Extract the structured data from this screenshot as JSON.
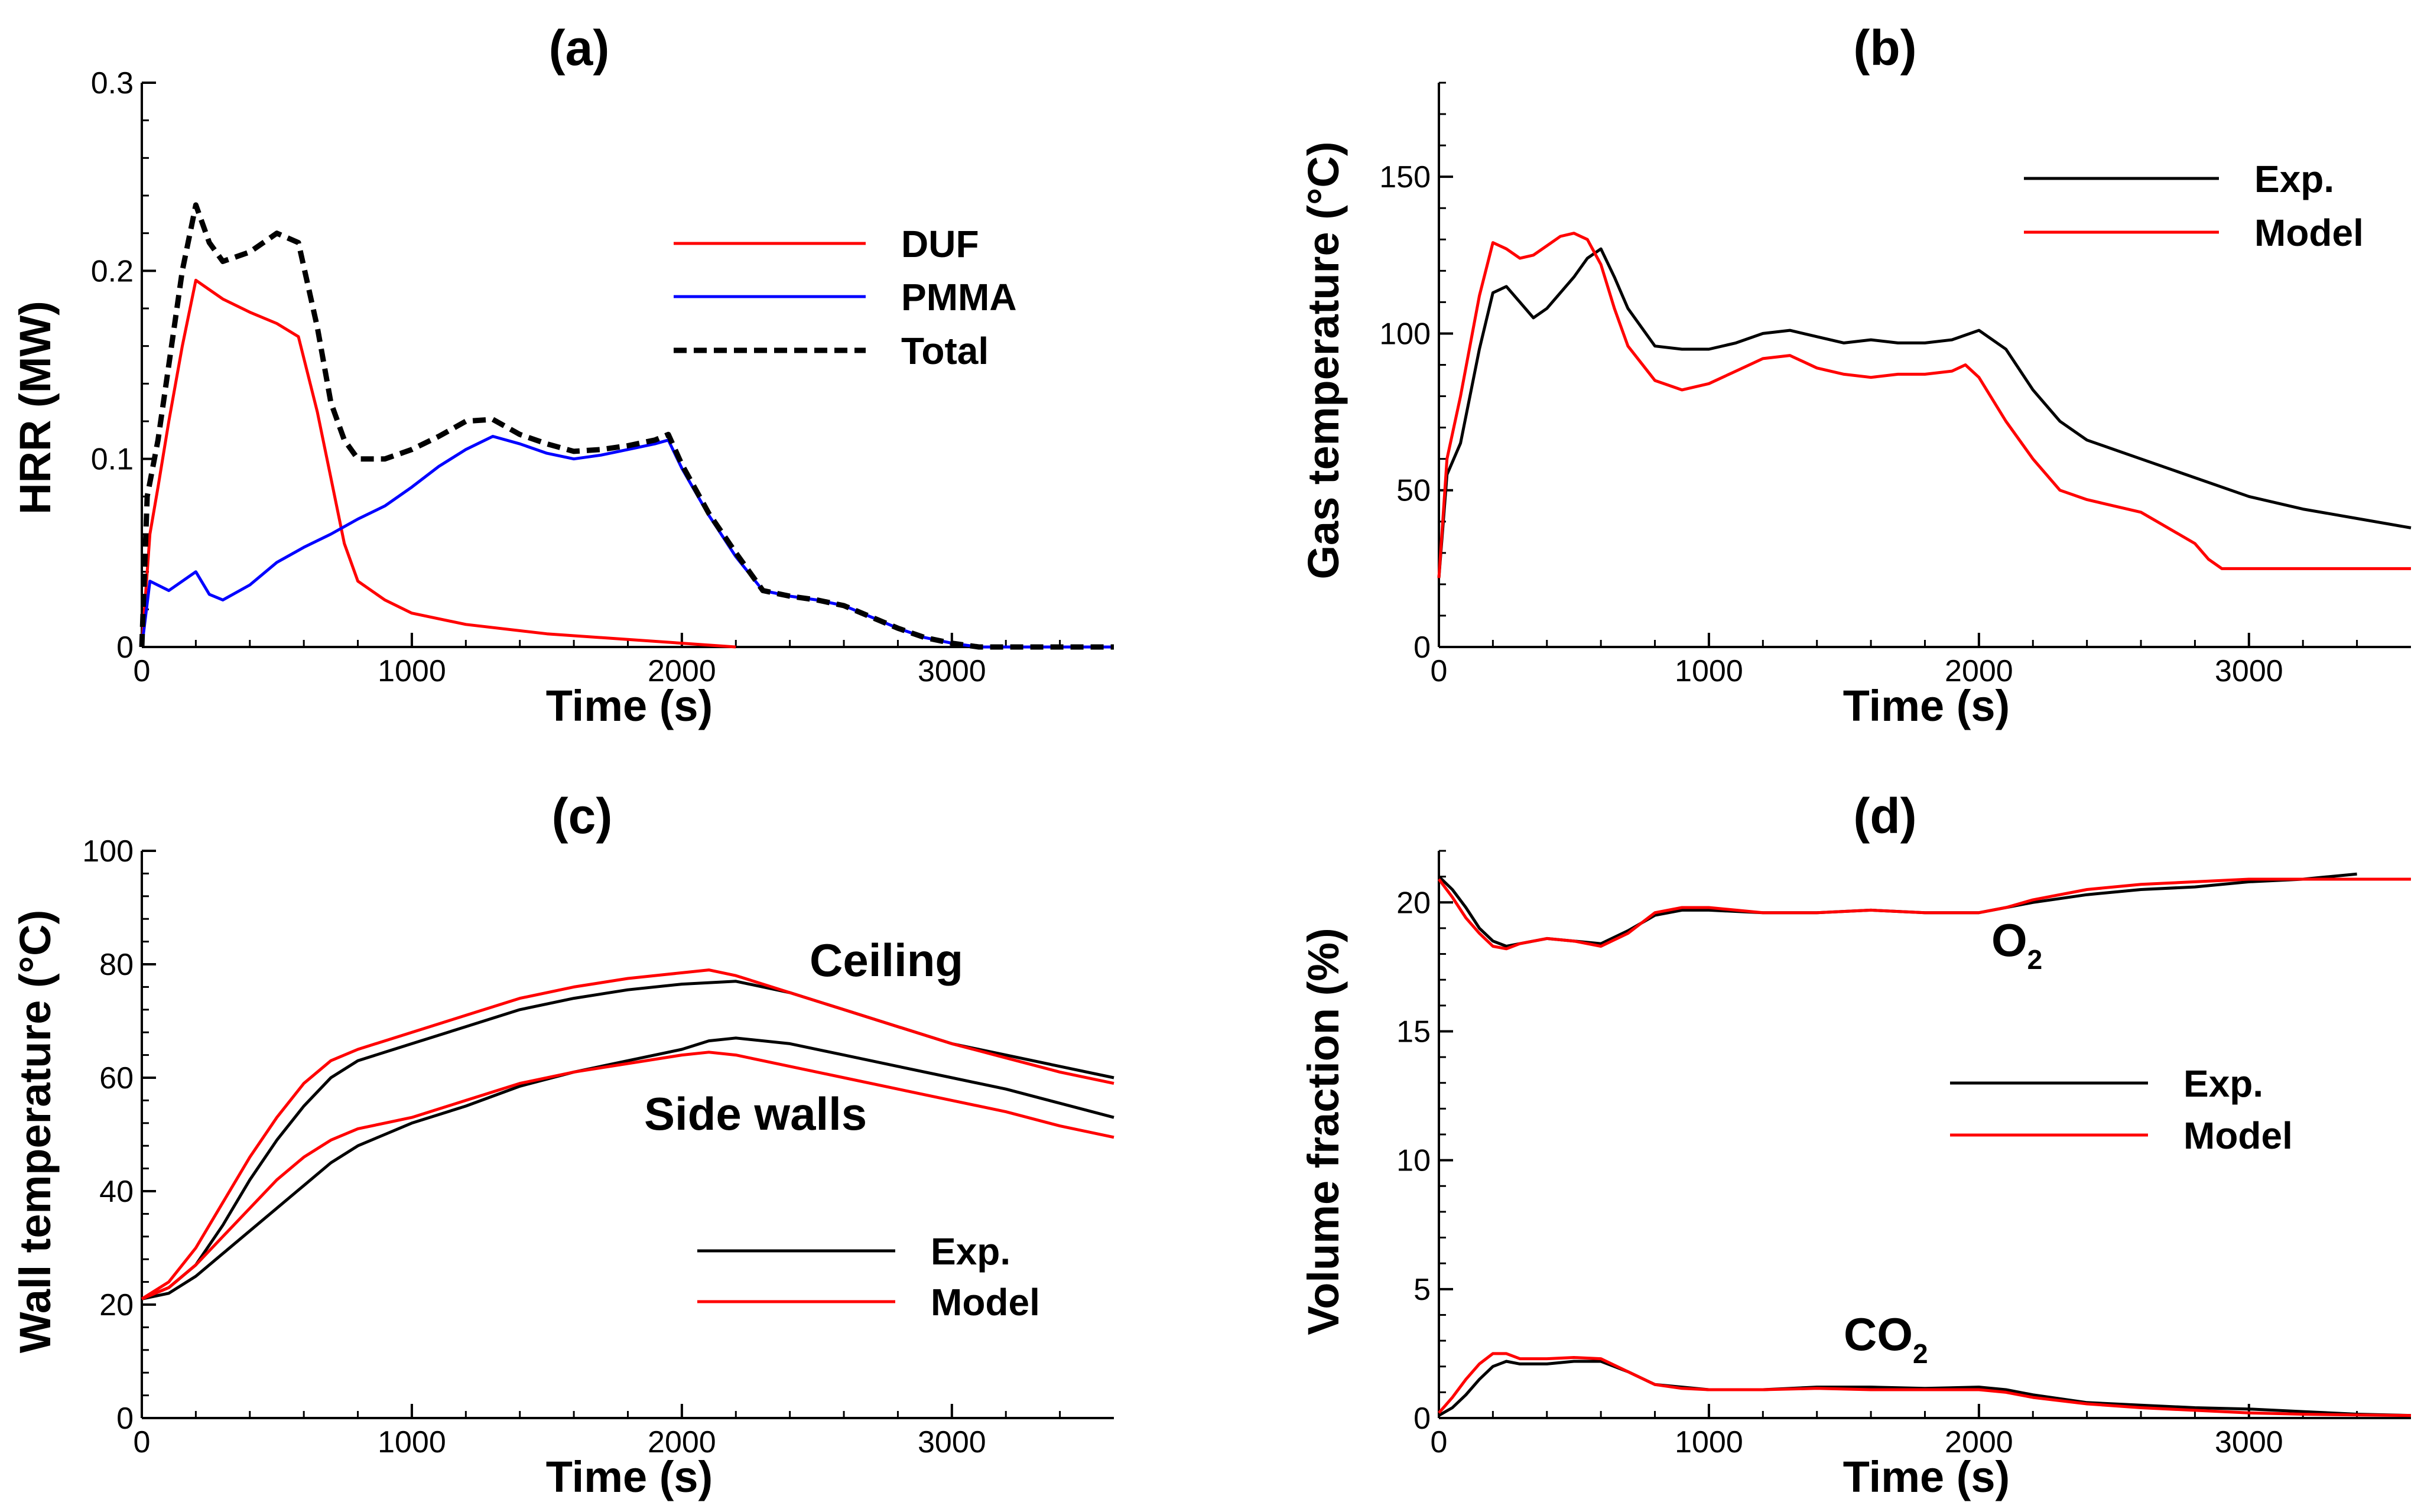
{
  "chart_data": [
    {
      "panel": "a",
      "type": "line",
      "title": "(a)",
      "xlabel": "Time (s)",
      "ylabel": "HRR (MW)",
      "xlim": [
        0,
        3600
      ],
      "ylim": [
        0,
        0.3
      ],
      "xticks": [
        0,
        1000,
        2000,
        3000
      ],
      "yticks": [
        0,
        0.1,
        0.2,
        0.3
      ],
      "xtick_labels": [
        "0",
        "1000",
        "2000",
        "3000"
      ],
      "ytick_labels": [
        "0",
        "0.1",
        "0.2",
        "0.3"
      ],
      "legend": "top-right",
      "series": [
        {
          "name": "DUF",
          "color": "#ff0000",
          "dash": "solid",
          "x": [
            0,
            30,
            60,
            100,
            150,
            200,
            250,
            300,
            400,
            500,
            580,
            650,
            700,
            750,
            800,
            900,
            1000,
            1200,
            1500,
            1800,
            2000,
            2200
          ],
          "y": [
            0,
            0.06,
            0.085,
            0.12,
            0.16,
            0.195,
            0.19,
            0.185,
            0.178,
            0.172,
            0.165,
            0.125,
            0.09,
            0.055,
            0.035,
            0.025,
            0.018,
            0.012,
            0.007,
            0.004,
            0.002,
            0.0
          ]
        },
        {
          "name": "PMMA",
          "color": "#0000ff",
          "dash": "solid",
          "x": [
            0,
            30,
            100,
            200,
            250,
            300,
            400,
            500,
            600,
            700,
            800,
            900,
            1000,
            1100,
            1200,
            1300,
            1400,
            1500,
            1600,
            1700,
            1800,
            1900,
            1950,
            2000,
            2100,
            2200,
            2300,
            2400,
            2500,
            2600,
            2700,
            2800,
            2900,
            3000,
            3100,
            3600
          ],
          "y": [
            0,
            0.035,
            0.03,
            0.04,
            0.028,
            0.025,
            0.033,
            0.045,
            0.053,
            0.06,
            0.068,
            0.075,
            0.085,
            0.096,
            0.105,
            0.112,
            0.108,
            0.103,
            0.1,
            0.102,
            0.105,
            0.108,
            0.11,
            0.095,
            0.07,
            0.048,
            0.03,
            0.027,
            0.025,
            0.022,
            0.016,
            0.01,
            0.005,
            0.002,
            0.0,
            0.0
          ]
        },
        {
          "name": "Total",
          "color": "#000000",
          "dash": "dashed",
          "x": [
            0,
            20,
            60,
            100,
            150,
            200,
            250,
            300,
            400,
            500,
            580,
            650,
            700,
            750,
            800,
            900,
            1000,
            1100,
            1200,
            1300,
            1400,
            1500,
            1600,
            1700,
            1800,
            1900,
            1950,
            2000,
            2100,
            2200,
            2300,
            2400,
            2500,
            2600,
            2700,
            2800,
            2900,
            3000,
            3100,
            3600
          ],
          "y": [
            0,
            0.08,
            0.11,
            0.15,
            0.2,
            0.235,
            0.215,
            0.205,
            0.21,
            0.22,
            0.215,
            0.17,
            0.13,
            0.11,
            0.1,
            0.1,
            0.105,
            0.112,
            0.12,
            0.121,
            0.113,
            0.108,
            0.104,
            0.105,
            0.107,
            0.11,
            0.113,
            0.097,
            0.071,
            0.05,
            0.03,
            0.027,
            0.025,
            0.022,
            0.016,
            0.01,
            0.005,
            0.002,
            0.0,
            0.0
          ]
        }
      ]
    },
    {
      "panel": "b",
      "type": "line",
      "title": "(b)",
      "xlabel": "Time (s)",
      "ylabel": "Gas temperature (°C)",
      "xlim": [
        0,
        3600
      ],
      "ylim": [
        0,
        180
      ],
      "xticks": [
        0,
        1000,
        2000,
        3000
      ],
      "yticks": [
        0,
        50,
        100,
        150
      ],
      "xtick_labels": [
        "0",
        "1000",
        "2000",
        "3000"
      ],
      "ytick_labels": [
        "0",
        "50",
        "100",
        "150"
      ],
      "legend": "top-right",
      "series": [
        {
          "name": "Exp.",
          "color": "#000000",
          "dash": "solid",
          "x": [
            0,
            30,
            80,
            150,
            200,
            250,
            300,
            350,
            400,
            450,
            500,
            550,
            600,
            650,
            700,
            800,
            900,
            1000,
            1100,
            1200,
            1300,
            1400,
            1500,
            1600,
            1700,
            1800,
            1900,
            2000,
            2100,
            2200,
            2300,
            2400,
            2600,
            2800,
            3000,
            3200,
            3400,
            3600
          ],
          "y": [
            22,
            55,
            65,
            95,
            113,
            115,
            110,
            105,
            108,
            113,
            118,
            124,
            127,
            118,
            108,
            96,
            95,
            95,
            97,
            100,
            101,
            99,
            97,
            98,
            97,
            97,
            98,
            101,
            95,
            82,
            72,
            66,
            60,
            54,
            48,
            44,
            41,
            38
          ]
        },
        {
          "name": "Model",
          "color": "#ff0000",
          "dash": "solid",
          "x": [
            0,
            30,
            80,
            150,
            200,
            250,
            300,
            350,
            400,
            450,
            500,
            550,
            600,
            650,
            700,
            800,
            900,
            1000,
            1100,
            1200,
            1300,
            1400,
            1500,
            1600,
            1700,
            1800,
            1900,
            1950,
            2000,
            2100,
            2200,
            2300,
            2400,
            2600,
            2700,
            2800,
            2850,
            2900,
            3000,
            3600
          ],
          "y": [
            22,
            60,
            80,
            112,
            129,
            127,
            124,
            125,
            128,
            131,
            132,
            130,
            122,
            108,
            96,
            85,
            82,
            84,
            88,
            92,
            93,
            89,
            87,
            86,
            87,
            87,
            88,
            90,
            86,
            72,
            60,
            50,
            47,
            43,
            38,
            33,
            28,
            25,
            25,
            25
          ]
        }
      ]
    },
    {
      "panel": "c",
      "type": "line",
      "title": "(c)",
      "xlabel": "Time (s)",
      "ylabel": "Wall temperature (°C)",
      "xlim": [
        0,
        3600
      ],
      "ylim": [
        0,
        100
      ],
      "xticks": [
        0,
        1000,
        2000,
        3000
      ],
      "yticks": [
        0,
        20,
        40,
        60,
        80,
        100
      ],
      "xtick_labels": [
        "0",
        "1000",
        "2000",
        "3000"
      ],
      "ytick_labels": [
        "0",
        "20",
        "40",
        "60",
        "80",
        "100"
      ],
      "legend": "bottom-right",
      "annotations": [
        "Ceiling",
        "Side walls"
      ],
      "series": [
        {
          "name": "Exp.",
          "color": "#000000",
          "dash": "solid",
          "x": [
            0,
            100,
            200,
            300,
            400,
            500,
            600,
            700,
            800,
            900,
            1000,
            1200,
            1400,
            1600,
            1800,
            2000,
            2200,
            2400,
            2600,
            2800,
            3000,
            3200,
            3400,
            3600
          ],
          "y": [
            21,
            23,
            27,
            34,
            42,
            49,
            55,
            60,
            63,
            64.5,
            66,
            69,
            72,
            74,
            75.5,
            76.5,
            77,
            75,
            72,
            69,
            66,
            64,
            62,
            60
          ]
        },
        {
          "name": "Model",
          "color": "#ff0000",
          "dash": "solid",
          "x": [
            0,
            100,
            200,
            300,
            400,
            500,
            600,
            700,
            800,
            900,
            1000,
            1200,
            1400,
            1600,
            1800,
            2000,
            2100,
            2200,
            2400,
            2600,
            2800,
            3000,
            3200,
            3400,
            3600
          ],
          "y": [
            21,
            24,
            30,
            38,
            46,
            53,
            59,
            63,
            65,
            66.5,
            68,
            71,
            74,
            76,
            77.5,
            78.5,
            79,
            78,
            75,
            72,
            69,
            66,
            63.5,
            61,
            59
          ]
        },
        {
          "name": "Exp. (Side walls)",
          "color": "#000000",
          "dash": "solid",
          "x": [
            0,
            100,
            200,
            300,
            400,
            500,
            600,
            700,
            800,
            900,
            1000,
            1200,
            1400,
            1600,
            1800,
            2000,
            2100,
            2200,
            2400,
            2600,
            2800,
            3000,
            3200,
            3400,
            3600
          ],
          "y": [
            21,
            22,
            25,
            29,
            33,
            37,
            41,
            45,
            48,
            50,
            52,
            55,
            58.5,
            61,
            63,
            65,
            66.5,
            67,
            66,
            64,
            62,
            60,
            58,
            55.5,
            53
          ]
        },
        {
          "name": "Model (Side walls)",
          "color": "#ff0000",
          "dash": "solid",
          "x": [
            0,
            100,
            200,
            300,
            400,
            500,
            600,
            700,
            800,
            900,
            1000,
            1200,
            1400,
            1600,
            1800,
            2000,
            2100,
            2200,
            2400,
            2600,
            2800,
            3000,
            3200,
            3400,
            3600
          ],
          "y": [
            21,
            23,
            27,
            32,
            37,
            42,
            46,
            49,
            51,
            52,
            53,
            56,
            59,
            61,
            62.5,
            64,
            64.5,
            64,
            62,
            60,
            58,
            56,
            54,
            51.5,
            49.5
          ]
        }
      ]
    },
    {
      "panel": "d",
      "type": "line",
      "title": "(d)",
      "xlabel": "Time (s)",
      "ylabel": "Volume fraction (%)",
      "xlim": [
        0,
        3600
      ],
      "ylim": [
        0,
        22
      ],
      "xticks": [
        0,
        1000,
        2000,
        3000
      ],
      "yticks": [
        0,
        5,
        10,
        15,
        20
      ],
      "xtick_labels": [
        "0",
        "1000",
        "2000",
        "3000"
      ],
      "ytick_labels": [
        "0",
        "5",
        "10",
        "15",
        "20"
      ],
      "legend": "center-right",
      "annotations": [
        {
          "text": "O",
          "subscript": "2"
        },
        {
          "text": "CO",
          "subscript": "2"
        }
      ],
      "series": [
        {
          "name": "Exp.",
          "color": "#000000",
          "dash": "solid",
          "x": [
            0,
            50,
            100,
            150,
            200,
            250,
            300,
            400,
            500,
            600,
            700,
            800,
            900,
            1000,
            1200,
            1400,
            1600,
            1800,
            2000,
            2100,
            2200,
            2400,
            2600,
            2800,
            3000,
            3200,
            3300,
            3400
          ],
          "y": [
            21,
            20.5,
            19.8,
            19.0,
            18.5,
            18.3,
            18.4,
            18.6,
            18.5,
            18.4,
            18.9,
            19.5,
            19.7,
            19.7,
            19.6,
            19.6,
            19.7,
            19.6,
            19.6,
            19.8,
            20.0,
            20.3,
            20.5,
            20.6,
            20.8,
            20.9,
            21.0,
            21.1
          ]
        },
        {
          "name": "Model",
          "color": "#ff0000",
          "dash": "solid",
          "x": [
            0,
            50,
            100,
            150,
            200,
            250,
            300,
            400,
            500,
            600,
            700,
            800,
            900,
            1000,
            1200,
            1400,
            1600,
            1800,
            2000,
            2100,
            2200,
            2400,
            2600,
            2800,
            3000,
            3200,
            3400,
            3600
          ],
          "y": [
            20.9,
            20.2,
            19.4,
            18.8,
            18.3,
            18.2,
            18.4,
            18.6,
            18.5,
            18.3,
            18.8,
            19.6,
            19.8,
            19.8,
            19.6,
            19.6,
            19.7,
            19.6,
            19.6,
            19.8,
            20.1,
            20.5,
            20.7,
            20.8,
            20.9,
            20.9,
            20.9,
            20.9
          ]
        },
        {
          "name": "Exp. (CO2)",
          "color": "#000000",
          "dash": "solid",
          "x": [
            0,
            50,
            100,
            150,
            200,
            250,
            300,
            400,
            500,
            600,
            700,
            800,
            900,
            1000,
            1200,
            1400,
            1600,
            1800,
            2000,
            2100,
            2200,
            2400,
            2600,
            2800,
            3000,
            3200,
            3400,
            3600
          ],
          "y": [
            0.1,
            0.4,
            0.9,
            1.5,
            2.0,
            2.2,
            2.1,
            2.1,
            2.2,
            2.2,
            1.8,
            1.3,
            1.2,
            1.1,
            1.1,
            1.2,
            1.2,
            1.15,
            1.2,
            1.1,
            0.9,
            0.6,
            0.5,
            0.4,
            0.35,
            0.25,
            0.15,
            0.1
          ]
        },
        {
          "name": "Model (CO2)",
          "color": "#ff0000",
          "dash": "solid",
          "x": [
            0,
            50,
            100,
            150,
            200,
            250,
            300,
            400,
            500,
            600,
            700,
            800,
            900,
            1000,
            1200,
            1400,
            1600,
            1800,
            2000,
            2100,
            2200,
            2400,
            2600,
            2800,
            3000,
            3200,
            3400,
            3600
          ],
          "y": [
            0.2,
            0.8,
            1.5,
            2.1,
            2.5,
            2.5,
            2.3,
            2.3,
            2.35,
            2.3,
            1.8,
            1.3,
            1.15,
            1.1,
            1.1,
            1.15,
            1.1,
            1.1,
            1.1,
            1.0,
            0.8,
            0.55,
            0.4,
            0.3,
            0.2,
            0.15,
            0.12,
            0.1
          ]
        }
      ]
    }
  ]
}
